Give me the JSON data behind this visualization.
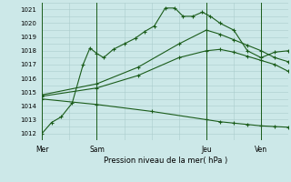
{
  "title": "Pression niveau de la mer( hPa )",
  "bg_color": "#cce8e8",
  "grid_color": "#aacccc",
  "line_color": "#1a5c1a",
  "ylim": [
    1011.5,
    1021.5
  ],
  "yticks": [
    1012,
    1013,
    1014,
    1015,
    1016,
    1017,
    1018,
    1019,
    1020,
    1021
  ],
  "xtick_labels": [
    "Mer",
    "Sam",
    "Jeu",
    "Ven"
  ],
  "xtick_positions": [
    0,
    4,
    12,
    16
  ],
  "xlim": [
    0,
    18
  ],
  "vline_positions": [
    0,
    4,
    12,
    16
  ],
  "l1x": [
    0,
    0.7,
    1.4,
    2.2,
    3.0,
    3.5,
    4.0,
    4.5,
    5.2,
    6.0,
    6.8,
    7.5,
    8.2,
    9.0,
    9.7,
    10.3,
    11.0,
    11.7,
    12.3,
    13.0,
    14.0,
    15.0,
    16.0,
    17.0,
    18.0
  ],
  "l1y": [
    1012.0,
    1012.8,
    1013.2,
    1014.2,
    1017.0,
    1018.2,
    1017.8,
    1017.5,
    1018.1,
    1018.5,
    1018.9,
    1019.4,
    1019.8,
    1021.1,
    1021.1,
    1020.5,
    1020.5,
    1020.8,
    1020.5,
    1020.0,
    1019.5,
    1018.0,
    1017.5,
    1017.9,
    1018.0
  ],
  "l2x": [
    0,
    4,
    7,
    10,
    12,
    13,
    14,
    15,
    16,
    17,
    18
  ],
  "l2y": [
    1014.8,
    1015.6,
    1016.8,
    1018.5,
    1019.5,
    1019.2,
    1018.8,
    1018.4,
    1018.0,
    1017.5,
    1017.2
  ],
  "l3x": [
    0,
    4,
    7,
    10,
    12,
    13,
    14,
    15,
    16,
    17,
    18
  ],
  "l3y": [
    1014.7,
    1015.3,
    1016.2,
    1017.5,
    1018.0,
    1018.1,
    1017.9,
    1017.6,
    1017.3,
    1017.0,
    1016.5
  ],
  "l4x": [
    0,
    4,
    8,
    12,
    13,
    14,
    15,
    16,
    17,
    18
  ],
  "l4y": [
    1014.5,
    1014.1,
    1013.6,
    1013.0,
    1012.85,
    1012.75,
    1012.65,
    1012.55,
    1012.5,
    1012.45
  ]
}
